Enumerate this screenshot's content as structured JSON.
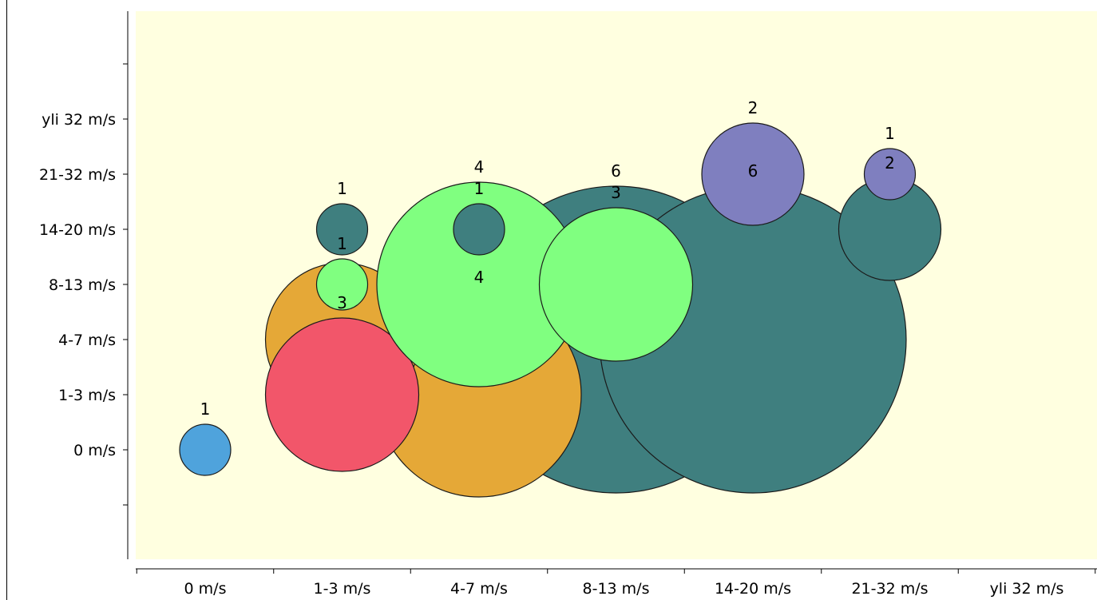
{
  "chart_data": {
    "type": "bubble",
    "x_categories": [
      "0 m/s",
      "1-3 m/s",
      "4-7 m/s",
      "8-13 m/s",
      "14-20 m/s",
      "21-32 m/s",
      "yli 32 m/s"
    ],
    "y_categories": [
      "0 m/s",
      "1-3 m/s",
      "4-7 m/s",
      "8-13 m/s",
      "14-20 m/s",
      "21-32 m/s",
      "yli 32 m/s"
    ],
    "colors": {
      "plot_background": "#ffffe0",
      "bubble_stroke": "#1a1a1a",
      "axis": "#000000"
    },
    "bubbles": [
      {
        "x": "8-13 m/s",
        "y": "4-7 m/s",
        "value": 6,
        "label": "6",
        "color": "#3f7f7f"
      },
      {
        "x": "14-20 m/s",
        "y": "4-7 m/s",
        "value": 6,
        "label": "6",
        "color": "#3f7f7f"
      },
      {
        "x": "4-7 m/s",
        "y": "1-3 m/s",
        "value": 4,
        "label": "4",
        "color": "#e5a837"
      },
      {
        "x": "1-3 m/s",
        "y": "4-7 m/s",
        "value": 3,
        "label": "",
        "color": "#e5a837"
      },
      {
        "x": "1-3 m/s",
        "y": "1-3 m/s",
        "value": 3,
        "label": "3",
        "color": "#f2566a"
      },
      {
        "x": "4-7 m/s",
        "y": "8-13 m/s",
        "value": 4,
        "label": "4",
        "color": "#80ff80"
      },
      {
        "x": "8-13 m/s",
        "y": "8-13 m/s",
        "value": 3,
        "label": "3",
        "color": "#80ff80"
      },
      {
        "x": "14-20 m/s",
        "y": "21-32 m/s",
        "value": 2,
        "label": "2",
        "color": "#7f7fbf"
      },
      {
        "x": "21-32 m/s",
        "y": "14-20 m/s",
        "value": 2,
        "label": "2",
        "color": "#3f7f7f"
      },
      {
        "x": "21-32 m/s",
        "y": "21-32 m/s",
        "value": 1,
        "label": "1",
        "color": "#7f7fbf"
      },
      {
        "x": "1-3 m/s",
        "y": "14-20 m/s",
        "value": 1,
        "label": "1",
        "color": "#3f7f7f"
      },
      {
        "x": "1-3 m/s",
        "y": "8-13 m/s",
        "value": 1,
        "label": "1",
        "color": "#80ff80"
      },
      {
        "x": "4-7 m/s",
        "y": "14-20 m/s",
        "value": 1,
        "label": "1",
        "color": "#3f7f7f"
      },
      {
        "x": "0 m/s",
        "y": "0 m/s",
        "value": 1,
        "label": "1",
        "color": "#4fa3dc"
      }
    ]
  }
}
